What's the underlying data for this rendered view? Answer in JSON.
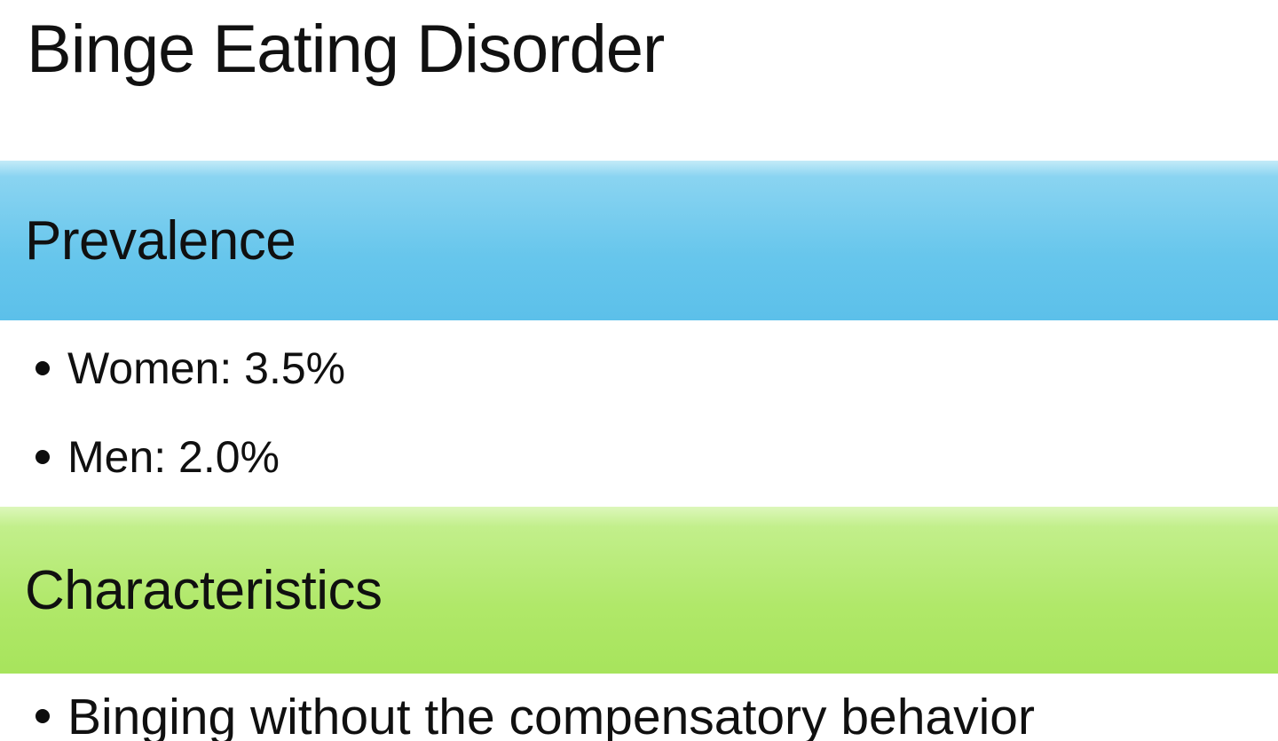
{
  "slide": {
    "title": "Binge Eating Disorder",
    "sections": [
      {
        "heading": "Prevalence",
        "heading_color": "#67c6ec",
        "bullets": [
          "Women: 3.5%",
          "Men: 2.0%"
        ]
      },
      {
        "heading": "Characteristics",
        "heading_color": "#b0e869",
        "bullets": [
          "Binging without the compensatory behavior"
        ]
      }
    ]
  }
}
